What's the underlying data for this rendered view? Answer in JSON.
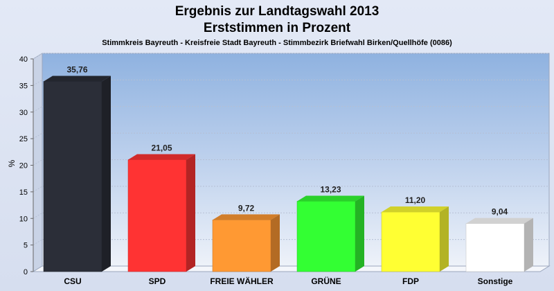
{
  "chart_data": {
    "type": "bar",
    "title": "Ergebnis zur Landtagswahl 2013",
    "subtitle": "Erststimmen in Prozent",
    "caption": "Stimmkreis Bayreuth - Kreisfreie Stadt Bayreuth - Stimmbezirk Briefwahl Birken/Quellhöfe (0086)",
    "ylabel": "%",
    "xlabel": "",
    "ylim": [
      0,
      40
    ],
    "yticks": [
      0,
      5,
      10,
      15,
      20,
      25,
      30,
      35,
      40
    ],
    "grid": true,
    "categories": [
      "CSU",
      "SPD",
      "FREIE WÄHLER",
      "GRÜNE",
      "FDP",
      "Sonstige"
    ],
    "values": [
      35.76,
      21.05,
      9.72,
      13.23,
      11.2,
      9.04
    ],
    "value_labels": [
      "35,76",
      "21,05",
      "9,72",
      "13,23",
      "11,20",
      "9,04"
    ],
    "colors": [
      "#2b2e38",
      "#ff3333",
      "#ff9933",
      "#33ff33",
      "#ffff33",
      "#ffffff"
    ]
  }
}
